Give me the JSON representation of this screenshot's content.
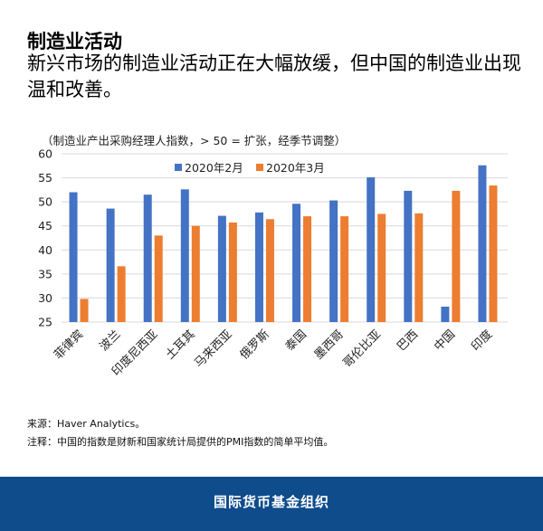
{
  "header": {
    "title": "制造业活动",
    "subtitle": "新兴市场的制造业活动正在大幅放缓，但中国的制造业出现温和改善。"
  },
  "chart_data": {
    "type": "bar",
    "note": "（制造业产出采购经理人指数，> 50 = 扩张，经季节调整）",
    "categories": [
      "菲律宾",
      "波兰",
      "印度尼西亚",
      "土耳其",
      "马来西亚",
      "俄罗斯",
      "泰国",
      "墨西哥",
      "哥伦比亚",
      "巴西",
      "中国",
      "印度"
    ],
    "series": [
      {
        "name": "2020年2月",
        "color": "#4472c4",
        "values": [
          52.0,
          48.6,
          51.5,
          52.6,
          47.1,
          47.8,
          49.6,
          50.3,
          55.1,
          52.3,
          28.2,
          57.6
        ]
      },
      {
        "name": "2020年3月",
        "color": "#ed7d31",
        "values": [
          29.8,
          36.6,
          43.0,
          45.0,
          45.7,
          46.4,
          47.0,
          47.0,
          47.5,
          47.6,
          52.3,
          53.4
        ]
      }
    ],
    "ylim": [
      25,
      60
    ],
    "yticks": [
      25,
      30,
      35,
      40,
      45,
      50,
      55,
      60
    ],
    "grid": true,
    "legend": "top"
  },
  "footnotes": {
    "source": "来源：Haver Analytics。",
    "note": "注释：中国的指数是财新和国家统计局提供的PMI指数的简单平均值。"
  },
  "footer": {
    "org": "国际货币基金组织"
  }
}
